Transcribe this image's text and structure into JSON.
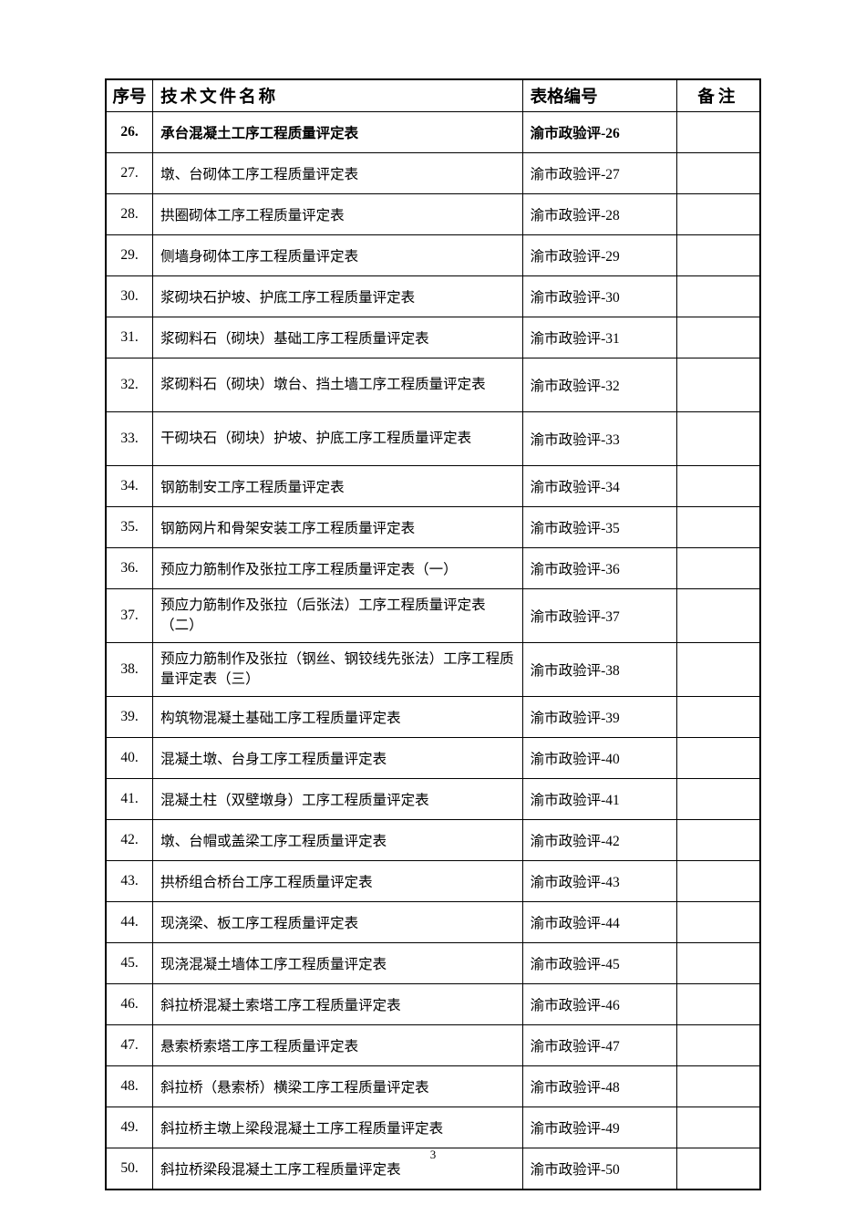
{
  "header": {
    "seq": "序号",
    "title": "技术文件名称",
    "code": "表格编号",
    "note": "备注"
  },
  "rows": [
    {
      "seq": "26.",
      "title": "承台混凝土工序工程质量评定表",
      "code": "渝市政验评-26",
      "note": "",
      "bold": true
    },
    {
      "seq": "27.",
      "title": "墩、台砌体工序工程质量评定表",
      "code": "渝市政验评-27",
      "note": ""
    },
    {
      "seq": "28.",
      "title": "拱圈砌体工序工程质量评定表",
      "code": "渝市政验评-28",
      "note": ""
    },
    {
      "seq": "29.",
      "title": "侧墙身砌体工序工程质量评定表",
      "code": "渝市政验评-29",
      "note": ""
    },
    {
      "seq": "30.",
      "title": "浆砌块石护坡、护底工序工程质量评定表",
      "code": "渝市政验评-30",
      "note": ""
    },
    {
      "seq": "31.",
      "title": "浆砌料石（砌块）基础工序工程质量评定表",
      "code": "渝市政验评-31",
      "note": ""
    },
    {
      "seq": "32.",
      "title": "浆砌料石（砌块）墩台、挡土墙工序工程质量评定表",
      "code": "渝市政验评-32",
      "note": "",
      "twoLine": true
    },
    {
      "seq": "33.",
      "title": "干砌块石（砌块）护坡、护底工序工程质量评定表",
      "code": "渝市政验评-33",
      "note": "",
      "twoLine": true
    },
    {
      "seq": "34.",
      "title": "钢筋制安工序工程质量评定表",
      "code": "渝市政验评-34",
      "note": ""
    },
    {
      "seq": "35.",
      "title": "钢筋网片和骨架安装工序工程质量评定表",
      "code": "渝市政验评-35",
      "note": ""
    },
    {
      "seq": "36.",
      "title": "预应力筋制作及张拉工序工程质量评定表（一）",
      "code": "渝市政验评-36",
      "note": ""
    },
    {
      "seq": "37.",
      "title": "预应力筋制作及张拉（后张法）工序工程质量评定表（二）",
      "code": "渝市政验评-37",
      "note": "",
      "twoLine": true
    },
    {
      "seq": "38.",
      "title": "预应力筋制作及张拉（钢丝、钢铰线先张法）工序工程质量评定表（三）",
      "code": "渝市政验评-38",
      "note": "",
      "twoLine": true
    },
    {
      "seq": "39.",
      "title": "构筑物混凝土基础工序工程质量评定表",
      "code": "渝市政验评-39",
      "note": ""
    },
    {
      "seq": "40.",
      "title": "混凝土墩、台身工序工程质量评定表",
      "code": "渝市政验评-40",
      "note": ""
    },
    {
      "seq": "41.",
      "title": "混凝土柱（双壁墩身）工序工程质量评定表",
      "code": "渝市政验评-41",
      "note": ""
    },
    {
      "seq": "42.",
      "title": "墩、台帽或盖梁工序工程质量评定表",
      "code": "渝市政验评-42",
      "note": ""
    },
    {
      "seq": "43.",
      "title": "拱桥组合桥台工序工程质量评定表",
      "code": "渝市政验评-43",
      "note": ""
    },
    {
      "seq": "44.",
      "title": "现浇梁、板工序工程质量评定表",
      "code": "渝市政验评-44",
      "note": ""
    },
    {
      "seq": "45.",
      "title": "现浇混凝土墙体工序工程质量评定表",
      "code": "渝市政验评-45",
      "note": ""
    },
    {
      "seq": "46.",
      "title": "斜拉桥混凝土索塔工序工程质量评定表",
      "code": "渝市政验评-46",
      "note": ""
    },
    {
      "seq": "47.",
      "title": "悬索桥索塔工序工程质量评定表",
      "code": "渝市政验评-47",
      "note": ""
    },
    {
      "seq": "48.",
      "title": "斜拉桥（悬索桥）横梁工序工程质量评定表",
      "code": "渝市政验评-48",
      "note": ""
    },
    {
      "seq": "49.",
      "title": "斜拉桥主墩上梁段混凝土工序工程质量评定表",
      "code": "渝市政验评-49",
      "note": ""
    },
    {
      "seq": "50.",
      "title": "斜拉桥梁段混凝土工序工程质量评定表",
      "code": "渝市政验评-50",
      "note": ""
    }
  ],
  "pageNumber": "3"
}
